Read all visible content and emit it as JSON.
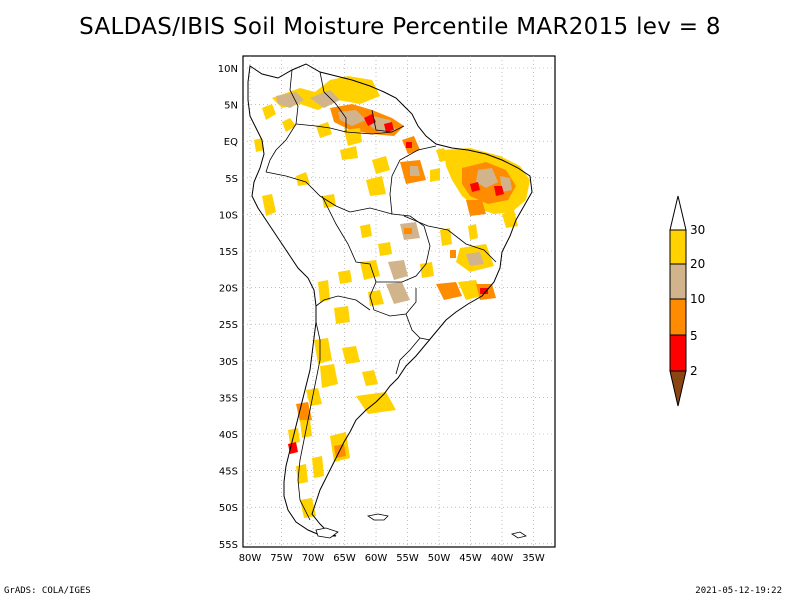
{
  "title": "SALDAS/IBIS Soil Moisture Percentile MAR2015 lev = 8",
  "axes": {
    "lon_ticks": [
      "80W",
      "75W",
      "70W",
      "65W",
      "60W",
      "55W",
      "50W",
      "45W",
      "40W",
      "35W"
    ],
    "lat_ticks": [
      "10N",
      "5N",
      "EQ",
      "5S",
      "10S",
      "15S",
      "20S",
      "25S",
      "30S",
      "35S",
      "40S",
      "45S",
      "50S",
      "55S"
    ]
  },
  "colorbar": {
    "labels": [
      "30",
      "20",
      "10",
      "5",
      "2"
    ],
    "colors": [
      "#ffffff",
      "#ffd200",
      "#d2b48c",
      "#ff8c00",
      "#ff0000",
      "#8b4513"
    ]
  },
  "footer": {
    "left": "GrADS: COLA/IGES",
    "right": "2021-05-12-19:22"
  }
}
